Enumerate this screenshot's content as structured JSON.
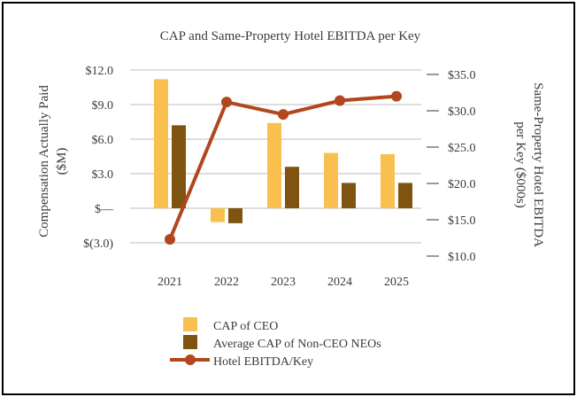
{
  "chart_data": {
    "type": "bar",
    "title": "CAP and Same-Property Hotel EBITDA per Key",
    "categories": [
      "2021",
      "2022",
      "2023",
      "2024",
      "2025"
    ],
    "ylabel": "Compensation Actually Paid ($M)",
    "y2label": "Same-Property Hotel EBITDA per Key ($000s)",
    "ylim": [
      -3.0,
      12.0
    ],
    "y2lim": [
      10.0,
      35.0
    ],
    "yticks": [
      {
        "value": 12.0,
        "label": "$12.0"
      },
      {
        "value": 9.0,
        "label": "$9.0"
      },
      {
        "value": 6.0,
        "label": "$6.0"
      },
      {
        "value": 3.0,
        "label": "$3.0"
      },
      {
        "value": 0,
        "label": "$—"
      },
      {
        "value": -3.0,
        "label": "$(3.0)"
      }
    ],
    "y2ticks": [
      {
        "value": 35.0,
        "label": "$35.0"
      },
      {
        "value": 30.0,
        "label": "$30.0"
      },
      {
        "value": 25.0,
        "label": "$25.0"
      },
      {
        "value": 20.0,
        "label": "$20.0"
      },
      {
        "value": 15.0,
        "label": "$15.0"
      },
      {
        "value": 10.0,
        "label": "$10.0"
      }
    ],
    "series": [
      {
        "name": "CAP of CEO",
        "type": "bar",
        "axis": "left",
        "color": "#f9bf4f",
        "values": [
          11.2,
          -1.2,
          7.4,
          4.8,
          4.7
        ]
      },
      {
        "name": "Average CAP of Non-CEO NEOs",
        "type": "bar",
        "axis": "left",
        "color": "#7f5410",
        "values": [
          7.2,
          -1.3,
          3.6,
          2.2,
          2.2
        ]
      },
      {
        "name": "Hotel EBITDA/Key",
        "type": "line",
        "axis": "right",
        "color": "#b1461f",
        "values": [
          12.3,
          31.2,
          29.5,
          31.4,
          32.0
        ]
      }
    ],
    "legend": "bottom-center",
    "grid": true
  }
}
